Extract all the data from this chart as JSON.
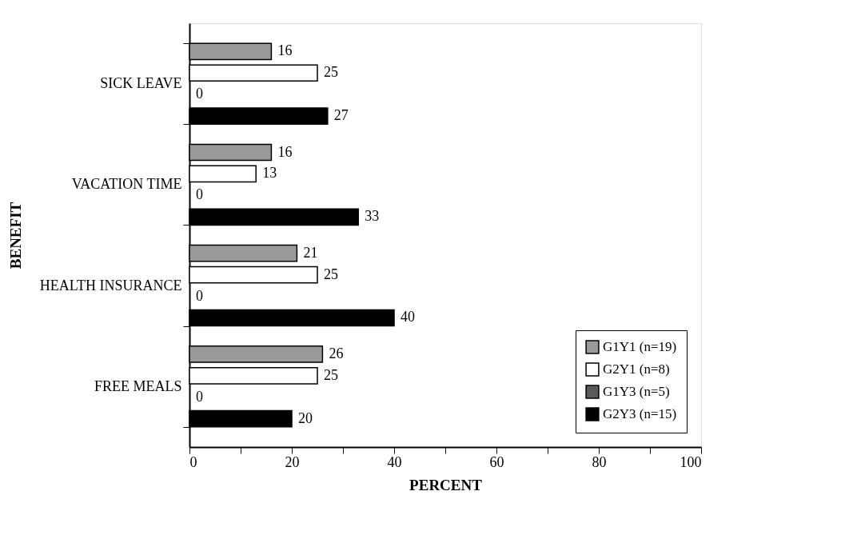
{
  "chart_data": {
    "type": "bar",
    "orientation": "horizontal",
    "xlabel": "PERCENT",
    "ylabel": "BENEFIT",
    "categories": [
      "SICK LEAVE",
      "VACATION TIME",
      "HEALTH INSURANCE",
      "FREE MEALS"
    ],
    "series": [
      {
        "name": "G1Y1 (n=19)",
        "color": "#9a9a9a",
        "values": [
          16,
          16,
          21,
          26
        ]
      },
      {
        "name": "G2Y1 (n=8)",
        "color": "#ffffff",
        "values": [
          25,
          13,
          25,
          25
        ]
      },
      {
        "name": "G1Y3 (n=5)",
        "color": "#5a5a5a",
        "values": [
          0,
          0,
          0,
          0
        ]
      },
      {
        "name": "G2Y3 (n=15)",
        "color": "#000000",
        "values": [
          27,
          33,
          40,
          20
        ]
      }
    ],
    "xlim": [
      0,
      100
    ],
    "xticks": [
      0,
      {
        "value": 10,
        "label": null
      },
      20,
      {
        "value": 30,
        "label": null
      },
      40,
      {
        "value": 50,
        "label": null
      },
      60,
      {
        "value": 70,
        "label": null
      },
      80,
      {
        "value": 90,
        "label": null
      },
      100
    ],
    "data_labels": true,
    "grid": false,
    "legend": "bottom right"
  }
}
